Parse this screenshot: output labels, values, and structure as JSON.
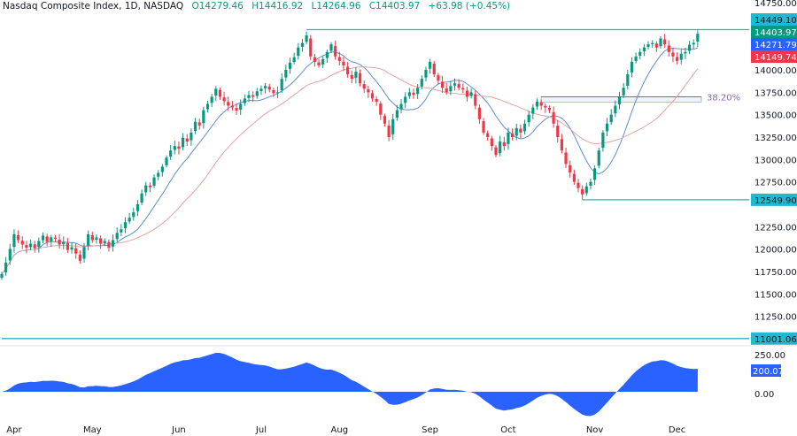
{
  "header": {
    "symbol": "Nasdaq Composite Index, 1D, NASDAQ",
    "open": "O14279.46",
    "high": "H14416.92",
    "low": "L14264.96",
    "close": "C14403.97",
    "change": "+63.98 (+0.45%)"
  },
  "colors": {
    "up": "#089981",
    "down": "#f23645",
    "ma_fast": "#5b8fd6",
    "ma_slow": "#e3a3a3",
    "level_line": "#26b5b8",
    "oscillator": "#2962ff",
    "fib": "#8c6bb1"
  },
  "chart_data": {
    "type": "candlestick",
    "x_tick_labels": [
      "Apr",
      "May",
      "Jun",
      "Jul",
      "Aug",
      "Sep",
      "Oct",
      "Nov",
      "Dec"
    ],
    "x_tick_index": [
      3,
      22,
      43,
      63,
      82,
      104,
      123,
      144,
      164
    ],
    "y_tick_labels": [
      "14750.00",
      "14000.00",
      "13750.00",
      "13500.00",
      "13250.00",
      "13000.00",
      "12750.00",
      "12250.00",
      "12000.00",
      "11750.00",
      "11500.00",
      "11250.00"
    ],
    "ylim": [
      10950,
      14780
    ],
    "closes": [
      11720,
      11850,
      12000,
      12165,
      12100,
      12050,
      12015,
      12060,
      12010,
      12090,
      12150,
      12080,
      12130,
      12115,
      12050,
      12080,
      11990,
      12020,
      11950,
      11870,
      12020,
      12165,
      12100,
      12130,
      12060,
      12090,
      12015,
      12100,
      12180,
      12220,
      12300,
      12350,
      12410,
      12500,
      12620,
      12710,
      12690,
      12800,
      12850,
      12920,
      13020,
      13100,
      13150,
      13120,
      13240,
      13200,
      13300,
      13420,
      13380,
      13550,
      13620,
      13700,
      13790,
      13700,
      13650,
      13600,
      13580,
      13545,
      13620,
      13680,
      13720,
      13700,
      13760,
      13790,
      13820,
      13780,
      13740,
      13750,
      13900,
      14000,
      14080,
      14140,
      14250,
      14300,
      14385,
      14150,
      14090,
      14050,
      14120,
      14200,
      14285,
      14150,
      14100,
      14050,
      13950,
      13900,
      13980,
      13850,
      13790,
      13750,
      13680,
      13645,
      13500,
      13400,
      13250,
      13450,
      13550,
      13620,
      13700,
      13750,
      13720,
      13800,
      13900,
      14000,
      14090,
      13950,
      13880,
      13800,
      13750,
      13820,
      13850,
      13800,
      13780,
      13700,
      13750,
      13600,
      13450,
      13300,
      13250,
      13150,
      13050,
      13200,
      13150,
      13300,
      13250,
      13350,
      13300,
      13400,
      13500,
      13580,
      13645,
      13600,
      13580,
      13550,
      13400,
      13250,
      13100,
      12950,
      12855,
      12750,
      12680,
      12610,
      12700,
      12750,
      12900,
      13100,
      13300,
      13400,
      13500,
      13600,
      13700,
      13800,
      13950,
      14090,
      14150,
      14200,
      14250,
      14285,
      14300,
      14250,
      14350,
      14285,
      14200,
      14150,
      14100,
      14180,
      14200,
      14280,
      14300,
      14404
    ],
    "levels": [
      {
        "label": "14449.10",
        "value": 14449.1,
        "from_index": 74
      },
      {
        "label": "12549.90",
        "value": 12549.9,
        "from_index": 141
      },
      {
        "label": "11001.06",
        "value": 11001.06,
        "from_index": 0
      }
    ],
    "fib": {
      "label": "38.20%",
      "top": 13700,
      "bottom": 13640,
      "from_index": 131
    },
    "price_tags": [
      {
        "label": "14403.97",
        "value": 14403.97,
        "color": "#089981"
      },
      {
        "label": "14271.79",
        "value": 14271.79,
        "color": "#2962ff"
      },
      {
        "label": "14149.74",
        "value": 14149.74,
        "color": "#f23645"
      }
    ],
    "oscillator": {
      "tick_labels": [
        "250.00",
        "0.00"
      ],
      "current_label": "200.07",
      "ylim": [
        -280,
        380
      ]
    }
  }
}
